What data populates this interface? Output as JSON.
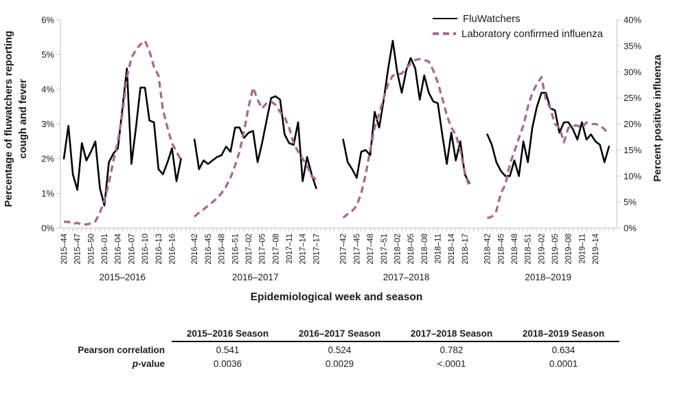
{
  "chart_data": {
    "type": "line",
    "title": "",
    "xlabel": "Epidemiological week and season",
    "ylabel_left_line1": "Percentage of fluwatchers reporting",
    "ylabel_left_line2": "cough and fever",
    "ylabel_right": "Percent positive influenza",
    "grid": false,
    "legend_position": "top-right",
    "y_left": {
      "min": 0,
      "max": 6,
      "tick_labels": [
        "0%",
        "1%",
        "2%",
        "3%",
        "4%",
        "5%",
        "6%"
      ]
    },
    "y_right": {
      "min": 0,
      "max": 40,
      "tick_labels": [
        "0%",
        "5%",
        "10%",
        "15%",
        "20%",
        "25%",
        "30%",
        "35%",
        "40%"
      ]
    },
    "series": [
      {
        "name": "FluWatchers",
        "axis": "left",
        "color": "#000000",
        "line_style": "solid"
      },
      {
        "name": "Laboratory confirmed influenza",
        "axis": "right",
        "color": "#a5698e",
        "line_style": "dashed"
      }
    ],
    "seasons": [
      {
        "label": "2015–2016",
        "week_tick_labels": [
          "2015–44",
          "2015–47",
          "2015–50",
          "2016–01",
          "2016–04",
          "2016–07",
          "2016–10",
          "2016–13",
          "2016–16"
        ],
        "fluwatchers_pct": [
          2.0,
          2.95,
          1.55,
          1.1,
          2.45,
          1.95,
          2.2,
          2.5,
          1.15,
          0.65,
          1.9,
          2.15,
          2.3,
          3.45,
          4.6,
          1.85,
          2.9,
          4.05,
          4.05,
          3.1,
          3.05,
          1.7,
          1.55,
          1.9,
          2.3,
          1.35,
          2.0
        ],
        "lab_positive_pct": [
          1.2,
          1.2,
          0.8,
          1.0,
          0.7,
          0.7,
          0.9,
          1.3,
          3.0,
          5.3,
          8.7,
          13.0,
          16.7,
          22.0,
          29.0,
          32.7,
          34.3,
          35.3,
          36.0,
          34.0,
          31.0,
          29.3,
          22.7,
          19.3,
          16.3,
          14.7,
          13.0
        ]
      },
      {
        "label": "2016–2017",
        "week_tick_labels": [
          "2016–42",
          "2016–45",
          "2016–48",
          "2016–51",
          "2017–02",
          "2017–05",
          "2017–08",
          "2017–11",
          "2017–14",
          "2017–17"
        ],
        "fluwatchers_pct": [
          2.55,
          1.7,
          1.95,
          1.85,
          1.95,
          2.05,
          2.1,
          2.35,
          2.2,
          2.9,
          2.9,
          2.6,
          2.75,
          2.8,
          1.9,
          2.45,
          3.1,
          3.75,
          3.8,
          3.7,
          2.7,
          2.45,
          2.4,
          3.05,
          1.35,
          2.05,
          1.55,
          1.15
        ],
        "lab_positive_pct": [
          2.2,
          3.0,
          3.6,
          4.3,
          5.0,
          5.7,
          6.7,
          8.0,
          9.7,
          12.0,
          14.7,
          18.7,
          23.3,
          27.0,
          24.7,
          23.0,
          24.0,
          24.3,
          23.7,
          22.3,
          21.3,
          19.3,
          16.3,
          14.7,
          13.3,
          12.0,
          10.0,
          9.3
        ]
      },
      {
        "label": "2017–2018",
        "week_tick_labels": [
          "2017–42",
          "2017–45",
          "2017–48",
          "2017–51",
          "2018–02",
          "2018–05",
          "2018–08",
          "2018–11",
          "2018–14",
          "2018–17"
        ],
        "fluwatchers_pct": [
          2.55,
          1.9,
          1.7,
          1.45,
          2.2,
          2.25,
          2.1,
          3.35,
          2.9,
          3.7,
          4.6,
          5.4,
          4.5,
          3.9,
          4.55,
          4.9,
          4.6,
          3.7,
          4.4,
          3.9,
          3.65,
          3.6,
          2.7,
          1.85,
          2.75,
          1.95,
          2.5,
          1.55,
          1.3
        ],
        "lab_positive_pct": [
          2.0,
          2.7,
          3.3,
          4.3,
          6.7,
          10.3,
          15.0,
          19.3,
          22.0,
          25.0,
          27.7,
          29.3,
          29.5,
          29.7,
          30.7,
          31.7,
          32.3,
          32.5,
          32.3,
          32.0,
          30.3,
          28.0,
          25.0,
          21.7,
          19.3,
          18.0,
          15.0,
          10.7,
          8.0
        ]
      },
      {
        "label": "2018–2019",
        "week_tick_labels": [
          "2018–42",
          "2018–45",
          "2018–48",
          "2018–51",
          "2019–02",
          "2019–05",
          "2019–08",
          "2019–11",
          "2019–14"
        ],
        "fluwatchers_pct": [
          2.7,
          2.4,
          1.9,
          1.65,
          1.5,
          1.5,
          1.95,
          1.5,
          2.5,
          1.9,
          2.9,
          3.5,
          3.9,
          3.9,
          3.45,
          3.4,
          2.75,
          3.05,
          3.05,
          2.85,
          2.55,
          3.05,
          2.55,
          2.7,
          2.5,
          2.4,
          1.9,
          2.35
        ],
        "lab_positive_pct": [
          1.9,
          2.2,
          3.3,
          6.7,
          8.3,
          12.3,
          14.7,
          17.3,
          19.7,
          23.3,
          26.0,
          27.7,
          29.0,
          24.7,
          23.0,
          20.0,
          19.3,
          16.5,
          19.3,
          19.7,
          19.7,
          19.3,
          20.3,
          20.0,
          20.0,
          19.7,
          19.0,
          18.0
        ]
      }
    ]
  },
  "table": {
    "col_headers": [
      "2015–2016 Season",
      "2016–2017 Season",
      "2017–2018 Season",
      "2018–2019 Season"
    ],
    "rows": [
      {
        "label": "Pearson correlation",
        "values": [
          "0.541",
          "0.524",
          "0.782",
          "0.634"
        ]
      },
      {
        "label_italic": "p",
        "label_rest": "-value",
        "values": [
          "0.0036",
          "0.0029",
          "<.0001",
          "0.0001"
        ]
      }
    ]
  }
}
